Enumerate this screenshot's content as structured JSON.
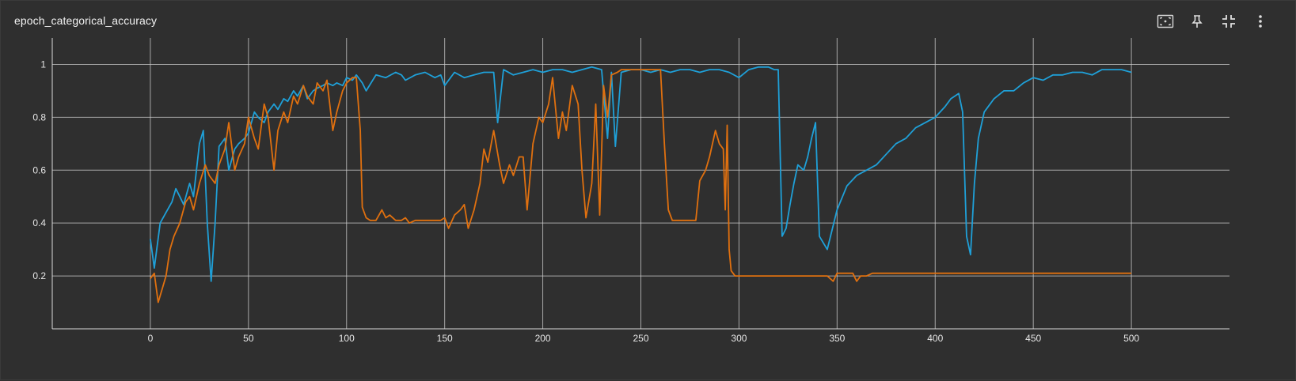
{
  "card": {
    "title": "epoch_categorical_accuracy"
  },
  "toolbar": [
    {
      "icon": "fit-domain-icon"
    },
    {
      "icon": "pin-icon"
    },
    {
      "icon": "collapse-icon"
    },
    {
      "icon": "more-vert-icon"
    }
  ],
  "colors": {
    "background": "#2f2f2f",
    "grid": "#cfcfcf",
    "series_blue": "#1fa0d8",
    "series_orange": "#e0700f"
  },
  "chart_data": {
    "type": "line",
    "title": "epoch_categorical_accuracy",
    "xlabel": "",
    "ylabel": "",
    "xlim": [
      -50,
      550
    ],
    "ylim": [
      0,
      1.1
    ],
    "grid": true,
    "legend": "none",
    "x_ticks": [
      0,
      50,
      100,
      150,
      200,
      250,
      300,
      350,
      400,
      450,
      500
    ],
    "y_ticks": [
      0.2,
      0.4,
      0.6,
      0.8,
      1
    ],
    "y_tick_labels": [
      "0.2",
      "0.4",
      "0.6",
      "0.8",
      "1"
    ],
    "series": [
      {
        "color": "#1fa0d8",
        "x": [
          0,
          2,
          5,
          8,
          11,
          13,
          15,
          17,
          20,
          22,
          25,
          27,
          29,
          31,
          33,
          35,
          38,
          40,
          43,
          45,
          48,
          50,
          53,
          55,
          58,
          60,
          63,
          65,
          68,
          70,
          73,
          75,
          78,
          80,
          83,
          85,
          88,
          90,
          93,
          95,
          98,
          100,
          103,
          105,
          108,
          110,
          115,
          120,
          125,
          128,
          130,
          135,
          140,
          145,
          148,
          150,
          155,
          160,
          165,
          170,
          175,
          177,
          180,
          185,
          190,
          195,
          200,
          205,
          210,
          215,
          220,
          225,
          230,
          233,
          235,
          237,
          240,
          245,
          250,
          255,
          260,
          265,
          270,
          275,
          280,
          285,
          290,
          295,
          300,
          305,
          310,
          315,
          318,
          320,
          322,
          324,
          326,
          328,
          330,
          333,
          335,
          337,
          339,
          341,
          345,
          350,
          355,
          360,
          365,
          370,
          375,
          380,
          385,
          390,
          395,
          400,
          405,
          408,
          410,
          412,
          414,
          416,
          418,
          420,
          422,
          425,
          430,
          435,
          440,
          445,
          450,
          455,
          460,
          465,
          470,
          475,
          480,
          485,
          490,
          495,
          500
        ],
        "y": [
          0.34,
          0.23,
          0.4,
          0.44,
          0.48,
          0.53,
          0.5,
          0.47,
          0.55,
          0.5,
          0.7,
          0.75,
          0.4,
          0.18,
          0.4,
          0.69,
          0.72,
          0.6,
          0.68,
          0.7,
          0.72,
          0.74,
          0.82,
          0.8,
          0.78,
          0.82,
          0.85,
          0.83,
          0.87,
          0.86,
          0.9,
          0.88,
          0.92,
          0.87,
          0.9,
          0.91,
          0.92,
          0.93,
          0.92,
          0.93,
          0.92,
          0.95,
          0.94,
          0.96,
          0.93,
          0.9,
          0.96,
          0.95,
          0.97,
          0.96,
          0.94,
          0.96,
          0.97,
          0.95,
          0.96,
          0.92,
          0.97,
          0.95,
          0.96,
          0.97,
          0.97,
          0.78,
          0.98,
          0.96,
          0.97,
          0.98,
          0.97,
          0.98,
          0.98,
          0.97,
          0.98,
          0.99,
          0.98,
          0.72,
          0.97,
          0.69,
          0.97,
          0.98,
          0.98,
          0.97,
          0.98,
          0.97,
          0.98,
          0.98,
          0.97,
          0.98,
          0.98,
          0.97,
          0.95,
          0.98,
          0.99,
          0.99,
          0.98,
          0.98,
          0.35,
          0.38,
          0.47,
          0.55,
          0.62,
          0.6,
          0.65,
          0.72,
          0.78,
          0.35,
          0.3,
          0.45,
          0.54,
          0.58,
          0.6,
          0.62,
          0.66,
          0.7,
          0.72,
          0.76,
          0.78,
          0.8,
          0.84,
          0.87,
          0.88,
          0.89,
          0.82,
          0.35,
          0.28,
          0.55,
          0.72,
          0.82,
          0.87,
          0.9,
          0.9,
          0.93,
          0.95,
          0.94,
          0.96,
          0.96,
          0.97,
          0.97,
          0.96,
          0.98,
          0.98,
          0.98,
          0.97
        ]
      },
      {
        "color": "#e0700f",
        "x": [
          0,
          2,
          4,
          6,
          8,
          10,
          12,
          15,
          18,
          20,
          22,
          25,
          28,
          30,
          33,
          35,
          38,
          40,
          43,
          45,
          48,
          50,
          53,
          55,
          58,
          60,
          63,
          65,
          68,
          70,
          73,
          75,
          78,
          80,
          83,
          85,
          88,
          90,
          93,
          95,
          98,
          100,
          103,
          105,
          107,
          108,
          110,
          112,
          115,
          118,
          120,
          122,
          125,
          128,
          130,
          132,
          135,
          140,
          145,
          148,
          150,
          152,
          155,
          158,
          160,
          162,
          165,
          168,
          170,
          172,
          175,
          178,
          180,
          183,
          185,
          188,
          190,
          192,
          195,
          198,
          200,
          203,
          205,
          208,
          210,
          212,
          215,
          218,
          220,
          222,
          225,
          227,
          229,
          231,
          233,
          235,
          238,
          240,
          245,
          250,
          255,
          260,
          262,
          264,
          266,
          268,
          270,
          275,
          278,
          280,
          283,
          285,
          288,
          290,
          292,
          293,
          294,
          295,
          296,
          298,
          300,
          340,
          345,
          348,
          350,
          355,
          358,
          360,
          362,
          365,
          368,
          370,
          372,
          380,
          400,
          450,
          500
        ],
        "y": [
          0.19,
          0.21,
          0.1,
          0.15,
          0.2,
          0.3,
          0.35,
          0.4,
          0.48,
          0.5,
          0.45,
          0.55,
          0.62,
          0.58,
          0.55,
          0.62,
          0.68,
          0.78,
          0.6,
          0.65,
          0.7,
          0.8,
          0.72,
          0.68,
          0.85,
          0.8,
          0.6,
          0.75,
          0.82,
          0.78,
          0.88,
          0.85,
          0.92,
          0.88,
          0.85,
          0.93,
          0.9,
          0.94,
          0.75,
          0.82,
          0.9,
          0.93,
          0.95,
          0.95,
          0.75,
          0.46,
          0.42,
          0.41,
          0.41,
          0.45,
          0.42,
          0.43,
          0.41,
          0.41,
          0.42,
          0.4,
          0.41,
          0.41,
          0.41,
          0.41,
          0.42,
          0.38,
          0.43,
          0.45,
          0.47,
          0.38,
          0.45,
          0.55,
          0.68,
          0.63,
          0.75,
          0.62,
          0.55,
          0.62,
          0.58,
          0.65,
          0.65,
          0.45,
          0.7,
          0.8,
          0.78,
          0.85,
          0.95,
          0.72,
          0.82,
          0.75,
          0.92,
          0.85,
          0.6,
          0.42,
          0.55,
          0.85,
          0.43,
          0.92,
          0.8,
          0.96,
          0.97,
          0.98,
          0.98,
          0.98,
          0.98,
          0.98,
          0.7,
          0.45,
          0.41,
          0.41,
          0.41,
          0.41,
          0.41,
          0.56,
          0.6,
          0.65,
          0.75,
          0.7,
          0.68,
          0.45,
          0.77,
          0.3,
          0.22,
          0.2,
          0.2,
          0.2,
          0.2,
          0.18,
          0.21,
          0.21,
          0.21,
          0.18,
          0.2,
          0.2,
          0.21,
          0.21,
          0.21,
          0.21,
          0.21,
          0.21,
          0.21
        ]
      }
    ]
  }
}
